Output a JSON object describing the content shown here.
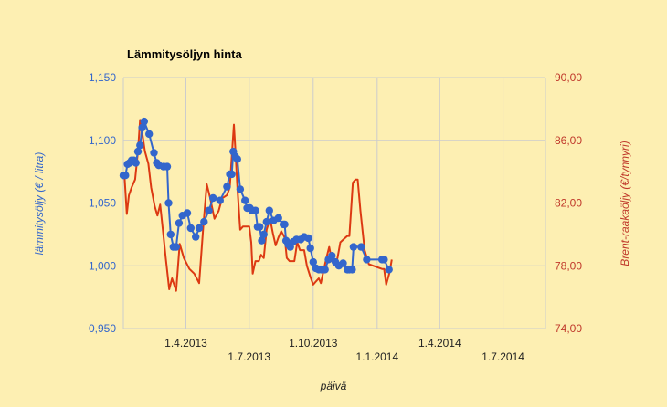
{
  "chart_data": {
    "type": "line",
    "title": "Lämmitysöljyn hinta",
    "xlabel": "päivä",
    "ylabel_left": "lämmitysöljy (€ / litra)",
    "ylabel_right": "Brent-raakaöljy (€/tynnyri)",
    "x_range": [
      "2013-01-01",
      "2014-08-31"
    ],
    "ylim_left": [
      0.95,
      1.15
    ],
    "ylim_right": [
      74,
      90
    ],
    "y_ticks_left": [
      "0,950",
      "1,000",
      "1,050",
      "1,100",
      "1,150"
    ],
    "y_ticks_right": [
      "74,00",
      "78,00",
      "82,00",
      "86,00",
      "90,00"
    ],
    "x_ticks": [
      {
        "date": "2013-04-01",
        "label": "1.4.2013",
        "row": 1
      },
      {
        "date": "2013-07-01",
        "label": "1.7.2013",
        "row": 2
      },
      {
        "date": "2013-10-01",
        "label": "1.10.2013",
        "row": 1
      },
      {
        "date": "2014-01-01",
        "label": "1.1.2014",
        "row": 2
      },
      {
        "date": "2014-04-01",
        "label": "1.4.2014",
        "row": 1
      },
      {
        "date": "2014-07-01",
        "label": "1.7.2014",
        "row": 2
      }
    ],
    "grid": true,
    "legend": "none",
    "colors": {
      "heating_oil": "#3366cc",
      "brent": "#dc3912",
      "grid": "#cccccc",
      "background": "#fdefb2"
    },
    "series": [
      {
        "axis": "left",
        "marker": "circle",
        "points": [
          [
            "2013-01-01",
            1.072
          ],
          [
            "2013-01-04",
            1.072
          ],
          [
            "2013-01-07",
            1.081
          ],
          [
            "2013-01-10",
            1.082
          ],
          [
            "2013-01-13",
            1.084
          ],
          [
            "2013-01-16",
            1.084
          ],
          [
            "2013-01-19",
            1.082
          ],
          [
            "2013-01-22",
            1.091
          ],
          [
            "2013-01-25",
            1.096
          ],
          [
            "2013-01-28",
            1.11
          ],
          [
            "2013-01-31",
            1.115
          ],
          [
            "2013-02-07",
            1.105
          ],
          [
            "2013-02-14",
            1.09
          ],
          [
            "2013-02-18",
            1.082
          ],
          [
            "2013-02-21",
            1.08
          ],
          [
            "2013-02-28",
            1.079
          ],
          [
            "2013-03-05",
            1.079
          ],
          [
            "2013-03-07",
            1.05
          ],
          [
            "2013-03-10",
            1.025
          ],
          [
            "2013-03-14",
            1.015
          ],
          [
            "2013-03-18",
            1.015
          ],
          [
            "2013-03-22",
            1.034
          ],
          [
            "2013-03-27",
            1.04
          ],
          [
            "2013-04-03",
            1.042
          ],
          [
            "2013-04-08",
            1.03
          ],
          [
            "2013-04-15",
            1.023
          ],
          [
            "2013-04-20",
            1.03
          ],
          [
            "2013-04-27",
            1.035
          ],
          [
            "2013-05-04",
            1.044
          ],
          [
            "2013-05-10",
            1.054
          ],
          [
            "2013-05-20",
            1.052
          ],
          [
            "2013-05-30",
            1.063
          ],
          [
            "2013-06-03",
            1.073
          ],
          [
            "2013-06-06",
            1.073
          ],
          [
            "2013-06-08",
            1.091
          ],
          [
            "2013-06-11",
            1.087
          ],
          [
            "2013-06-14",
            1.085
          ],
          [
            "2013-06-18",
            1.061
          ],
          [
            "2013-06-25",
            1.052
          ],
          [
            "2013-06-28",
            1.046
          ],
          [
            "2013-07-02",
            1.046
          ],
          [
            "2013-07-05",
            1.044
          ],
          [
            "2013-07-10",
            1.044
          ],
          [
            "2013-07-13",
            1.031
          ],
          [
            "2013-07-16",
            1.031
          ],
          [
            "2013-07-19",
            1.02
          ],
          [
            "2013-07-22",
            1.025
          ],
          [
            "2013-07-26",
            1.035
          ],
          [
            "2013-07-30",
            1.044
          ],
          [
            "2013-08-05",
            1.036
          ],
          [
            "2013-08-12",
            1.038
          ],
          [
            "2013-08-19",
            1.033
          ],
          [
            "2013-08-21",
            1.033
          ],
          [
            "2013-08-23",
            1.02
          ],
          [
            "2013-08-26",
            1.017
          ],
          [
            "2013-08-29",
            1.015
          ],
          [
            "2013-09-02",
            1.019
          ],
          [
            "2013-09-07",
            1.021
          ],
          [
            "2013-09-13",
            1.021
          ],
          [
            "2013-09-18",
            1.023
          ],
          [
            "2013-09-24",
            1.022
          ],
          [
            "2013-09-27",
            1.014
          ],
          [
            "2013-10-01",
            1.003
          ],
          [
            "2013-10-05",
            0.998
          ],
          [
            "2013-10-09",
            0.997
          ],
          [
            "2013-10-13",
            0.997
          ],
          [
            "2013-10-18",
            0.997
          ],
          [
            "2013-10-23",
            1.005
          ],
          [
            "2013-10-28",
            1.008
          ],
          [
            "2013-11-02",
            1.003
          ],
          [
            "2013-11-07",
            1.0
          ],
          [
            "2013-11-13",
            1.002
          ],
          [
            "2013-11-19",
            0.997
          ],
          [
            "2013-11-22",
            0.997
          ],
          [
            "2013-11-26",
            0.997
          ],
          [
            "2013-11-28",
            1.015
          ],
          [
            "2013-12-09",
            1.015
          ],
          [
            "2013-12-17",
            1.005
          ],
          [
            "2014-01-08",
            1.005
          ],
          [
            "2014-01-11",
            1.005
          ],
          [
            "2014-01-18",
            0.997
          ]
        ]
      },
      {
        "axis": "right",
        "marker": "none",
        "points": [
          [
            "2013-01-01",
            84.0
          ],
          [
            "2013-01-03",
            83.5
          ],
          [
            "2013-01-06",
            81.3
          ],
          [
            "2013-01-09",
            82.5
          ],
          [
            "2013-01-13",
            83.0
          ],
          [
            "2013-01-18",
            83.5
          ],
          [
            "2013-01-22",
            85.3
          ],
          [
            "2013-01-25",
            87.3
          ],
          [
            "2013-01-28",
            86.5
          ],
          [
            "2013-02-01",
            85.3
          ],
          [
            "2013-02-06",
            84.5
          ],
          [
            "2013-02-10",
            83.0
          ],
          [
            "2013-02-15",
            81.8
          ],
          [
            "2013-02-19",
            81.2
          ],
          [
            "2013-02-23",
            81.9
          ],
          [
            "2013-02-27",
            80.2
          ],
          [
            "2013-03-03",
            78.5
          ],
          [
            "2013-03-08",
            76.5
          ],
          [
            "2013-03-12",
            77.2
          ],
          [
            "2013-03-18",
            76.4
          ],
          [
            "2013-03-23",
            79.4
          ],
          [
            "2013-03-29",
            78.5
          ],
          [
            "2013-04-06",
            77.8
          ],
          [
            "2013-04-13",
            77.5
          ],
          [
            "2013-04-20",
            76.9
          ],
          [
            "2013-04-26",
            80.5
          ],
          [
            "2013-05-01",
            83.2
          ],
          [
            "2013-05-06",
            82.3
          ],
          [
            "2013-05-12",
            81.0
          ],
          [
            "2013-05-18",
            81.5
          ],
          [
            "2013-05-23",
            82.3
          ],
          [
            "2013-05-30",
            82.5
          ],
          [
            "2013-06-03",
            83.0
          ],
          [
            "2013-06-06",
            85.0
          ],
          [
            "2013-06-09",
            87.0
          ],
          [
            "2013-06-11",
            85.5
          ],
          [
            "2013-06-14",
            83.0
          ],
          [
            "2013-06-18",
            80.3
          ],
          [
            "2013-06-22",
            80.5
          ],
          [
            "2013-06-27",
            80.5
          ],
          [
            "2013-07-01",
            80.5
          ],
          [
            "2013-07-04",
            79.5
          ],
          [
            "2013-07-06",
            77.5
          ],
          [
            "2013-07-10",
            78.3
          ],
          [
            "2013-07-15",
            78.3
          ],
          [
            "2013-07-18",
            78.7
          ],
          [
            "2013-07-22",
            78.5
          ],
          [
            "2013-07-26",
            80.3
          ],
          [
            "2013-07-31",
            81.0
          ],
          [
            "2013-08-04",
            80.1
          ],
          [
            "2013-08-08",
            79.3
          ],
          [
            "2013-08-12",
            79.8
          ],
          [
            "2013-08-16",
            80.2
          ],
          [
            "2013-08-21",
            79.8
          ],
          [
            "2013-08-24",
            78.5
          ],
          [
            "2013-08-28",
            78.3
          ],
          [
            "2013-09-04",
            78.3
          ],
          [
            "2013-09-08",
            79.5
          ],
          [
            "2013-09-12",
            79.0
          ],
          [
            "2013-09-18",
            79.0
          ],
          [
            "2013-09-22",
            78.0
          ],
          [
            "2013-09-27",
            77.3
          ],
          [
            "2013-10-01",
            76.8
          ],
          [
            "2013-10-05",
            77.0
          ],
          [
            "2013-10-09",
            77.2
          ],
          [
            "2013-10-12",
            76.9
          ],
          [
            "2013-10-16",
            77.7
          ],
          [
            "2013-10-20",
            78.5
          ],
          [
            "2013-10-24",
            79.2
          ],
          [
            "2013-10-28",
            78.3
          ],
          [
            "2013-11-01",
            78.1
          ],
          [
            "2013-11-05",
            78.5
          ],
          [
            "2013-11-09",
            79.5
          ],
          [
            "2013-11-14",
            79.7
          ],
          [
            "2013-11-19",
            79.9
          ],
          [
            "2013-11-22",
            79.9
          ],
          [
            "2013-11-27",
            83.3
          ],
          [
            "2013-12-01",
            83.5
          ],
          [
            "2013-12-04",
            83.5
          ],
          [
            "2013-12-08",
            81.5
          ],
          [
            "2013-12-14",
            79.0
          ],
          [
            "2013-12-20",
            78.1
          ],
          [
            "2014-01-08",
            77.8
          ],
          [
            "2014-01-11",
            77.8
          ],
          [
            "2014-01-14",
            76.8
          ],
          [
            "2014-01-19",
            77.6
          ],
          [
            "2014-01-22",
            78.4
          ]
        ]
      }
    ]
  }
}
